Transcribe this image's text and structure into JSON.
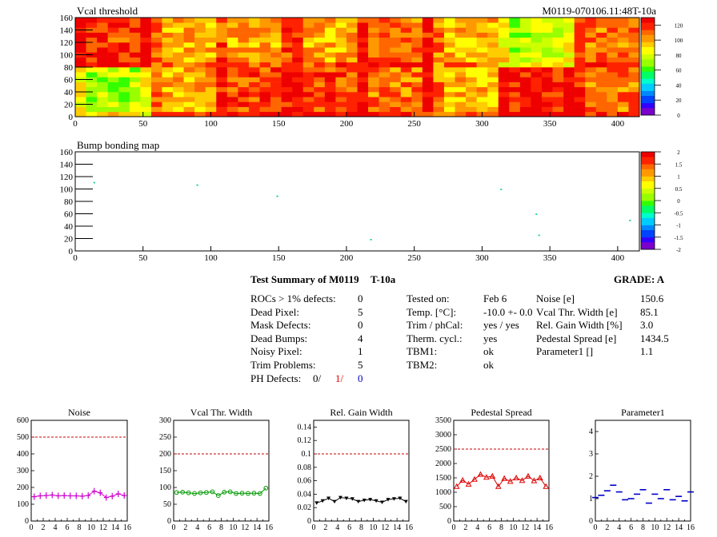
{
  "header": {
    "map1_title": "Vcal threshold",
    "module_id": "M0119-070106.11:48T-10a",
    "map2_title": "Bump bonding map"
  },
  "chart_data": [
    {
      "type": "heatmap",
      "title": "Vcal threshold",
      "x_range": [
        0,
        416
      ],
      "y_range": [
        0,
        160
      ],
      "x_ticks": [
        0,
        50,
        100,
        150,
        200,
        250,
        300,
        350,
        400
      ],
      "y_ticks": [
        0,
        20,
        40,
        60,
        80,
        100,
        120,
        140,
        160
      ],
      "palette_labels": [
        "0",
        "20",
        "40",
        "60",
        "80",
        "100",
        "120"
      ],
      "z_range": [
        0,
        130
      ],
      "roc_grid": {
        "columns": 8,
        "rows": 2,
        "column_width": 52,
        "row_height": 80
      },
      "roc_mean_values": {
        "top_row": [
          118,
          98,
          100,
          100,
          110,
          95,
          75,
          108
        ],
        "bottom_row": [
          75,
          98,
          112,
          115,
          108,
          95,
          118,
          108
        ]
      }
    },
    {
      "type": "scatter",
      "title": "Bump bonding map",
      "x_range": [
        0,
        416
      ],
      "y_range": [
        0,
        160
      ],
      "x_ticks": [
        0,
        50,
        100,
        150,
        200,
        250,
        300,
        350,
        400
      ],
      "y_ticks": [
        0,
        20,
        40,
        60,
        80,
        100,
        120,
        140,
        160
      ],
      "palette_labels": [
        "2",
        "1.5",
        "1",
        "0.5",
        "0",
        "-0.5",
        "-1",
        "-1.5",
        "-2"
      ],
      "points": [
        {
          "x": 14,
          "y": 110
        },
        {
          "x": 90,
          "y": 106
        },
        {
          "x": 149,
          "y": 88
        },
        {
          "x": 218,
          "y": 18
        },
        {
          "x": 314,
          "y": 99
        },
        {
          "x": 340,
          "y": 59
        },
        {
          "x": 342,
          "y": 25
        },
        {
          "x": 409,
          "y": 49
        }
      ]
    },
    {
      "type": "line",
      "title": "Noise",
      "x_range": [
        0,
        16
      ],
      "y_range": [
        0,
        600
      ],
      "x_ticks": [
        0,
        2,
        4,
        6,
        8,
        10,
        12,
        14,
        16
      ],
      "y_ticks": [
        0,
        100,
        200,
        300,
        400,
        500,
        600
      ],
      "limit": 500,
      "color": "#cc00cc",
      "marker": "cross",
      "values": [
        145,
        150,
        152,
        155,
        150,
        152,
        150,
        150,
        148,
        152,
        178,
        168,
        140,
        148,
        162,
        152
      ]
    },
    {
      "type": "line",
      "title": "Vcal Thr. Width",
      "x_range": [
        0,
        16
      ],
      "y_range": [
        0,
        300
      ],
      "x_ticks": [
        0,
        2,
        4,
        6,
        8,
        10,
        12,
        14,
        16
      ],
      "y_ticks": [
        0,
        50,
        100,
        150,
        200,
        250,
        300
      ],
      "limit": 200,
      "color": "#009900",
      "marker": "circle",
      "values": [
        85,
        86,
        84,
        82,
        84,
        85,
        87,
        76,
        86,
        87,
        82,
        83,
        82,
        83,
        82,
        98
      ]
    },
    {
      "type": "line",
      "title": "Rel. Gain Width",
      "x_range": [
        0,
        16
      ],
      "y_range": [
        0,
        0.15
      ],
      "x_ticks": [
        0,
        2,
        4,
        6,
        8,
        10,
        12,
        14,
        16
      ],
      "y_ticks": [
        0,
        0.02,
        0.04,
        0.06,
        0.08,
        0.1,
        0.12,
        0.14
      ],
      "y_tick_labels": [
        "0",
        "0.02",
        "0.04",
        "0.06",
        "0.08",
        "0.1",
        "0.12",
        "0.14"
      ],
      "limit": 0.1,
      "color": "#000000",
      "marker": "triangle-down",
      "values": [
        0.027,
        0.03,
        0.034,
        0.029,
        0.035,
        0.034,
        0.033,
        0.029,
        0.031,
        0.032,
        0.03,
        0.028,
        0.032,
        0.033,
        0.034,
        0.029
      ]
    },
    {
      "type": "line",
      "title": "Pedestal Spread",
      "x_range": [
        0,
        16
      ],
      "y_range": [
        0,
        3500
      ],
      "x_ticks": [
        0,
        2,
        4,
        6,
        8,
        10,
        12,
        14,
        16
      ],
      "y_ticks": [
        0,
        500,
        1000,
        1500,
        2000,
        2500,
        3000,
        3500
      ],
      "limit": 2500,
      "color": "#dd0000",
      "marker": "triangle-up",
      "values": [
        1200,
        1420,
        1280,
        1450,
        1620,
        1520,
        1560,
        1200,
        1480,
        1380,
        1500,
        1410,
        1560,
        1400,
        1500,
        1200
      ]
    },
    {
      "type": "scatter",
      "title": "Parameter1",
      "x_range": [
        0,
        16
      ],
      "y_range": [
        0,
        4.5
      ],
      "x_ticks": [
        0,
        2,
        4,
        6,
        8,
        10,
        12,
        14,
        16
      ],
      "y_ticks": [
        0,
        1,
        2,
        3,
        4
      ],
      "color": "#0000cc",
      "marker": "hbar",
      "values": [
        1.05,
        1.15,
        1.35,
        1.6,
        1.3,
        0.95,
        1.0,
        1.2,
        1.4,
        0.8,
        1.2,
        1.0,
        1.4,
        0.95,
        1.1,
        0.9,
        1.3
      ]
    }
  ],
  "summary": {
    "heading": "Test Summary of M0119",
    "temp_label": "T-10a",
    "grade": "GRADE:  A",
    "left_labels": [
      "ROCs > 1% defects:",
      "Dead Pixel:",
      "Mask Defects:",
      "Dead Bumps:",
      "Noisy Pixel:",
      "Trim Problems:"
    ],
    "left_values": [
      "0",
      "5",
      "0",
      "4",
      "1",
      "5"
    ],
    "ph_label": "PH Defects:",
    "ph_values": [
      "0/",
      "1/",
      "0"
    ],
    "mid_labels": [
      "Tested on:",
      "Temp. [°C]:",
      "Trim / phCal:",
      "Therm. cycl.:",
      "TBM1:",
      "TBM2:"
    ],
    "mid_values": [
      "Feb 6",
      "-10.0 +- 0.0",
      "yes / yes",
      "yes",
      "ok",
      "ok"
    ],
    "right_labels": [
      "Noise [e]",
      "Vcal Thr. Width [e]",
      "Rel. Gain Width [%]",
      "Pedestal Spread [e]",
      "Parameter1 []"
    ],
    "right_values": [
      "150.6",
      "85.1",
      "3.0",
      "1434.5",
      "1.1"
    ]
  }
}
